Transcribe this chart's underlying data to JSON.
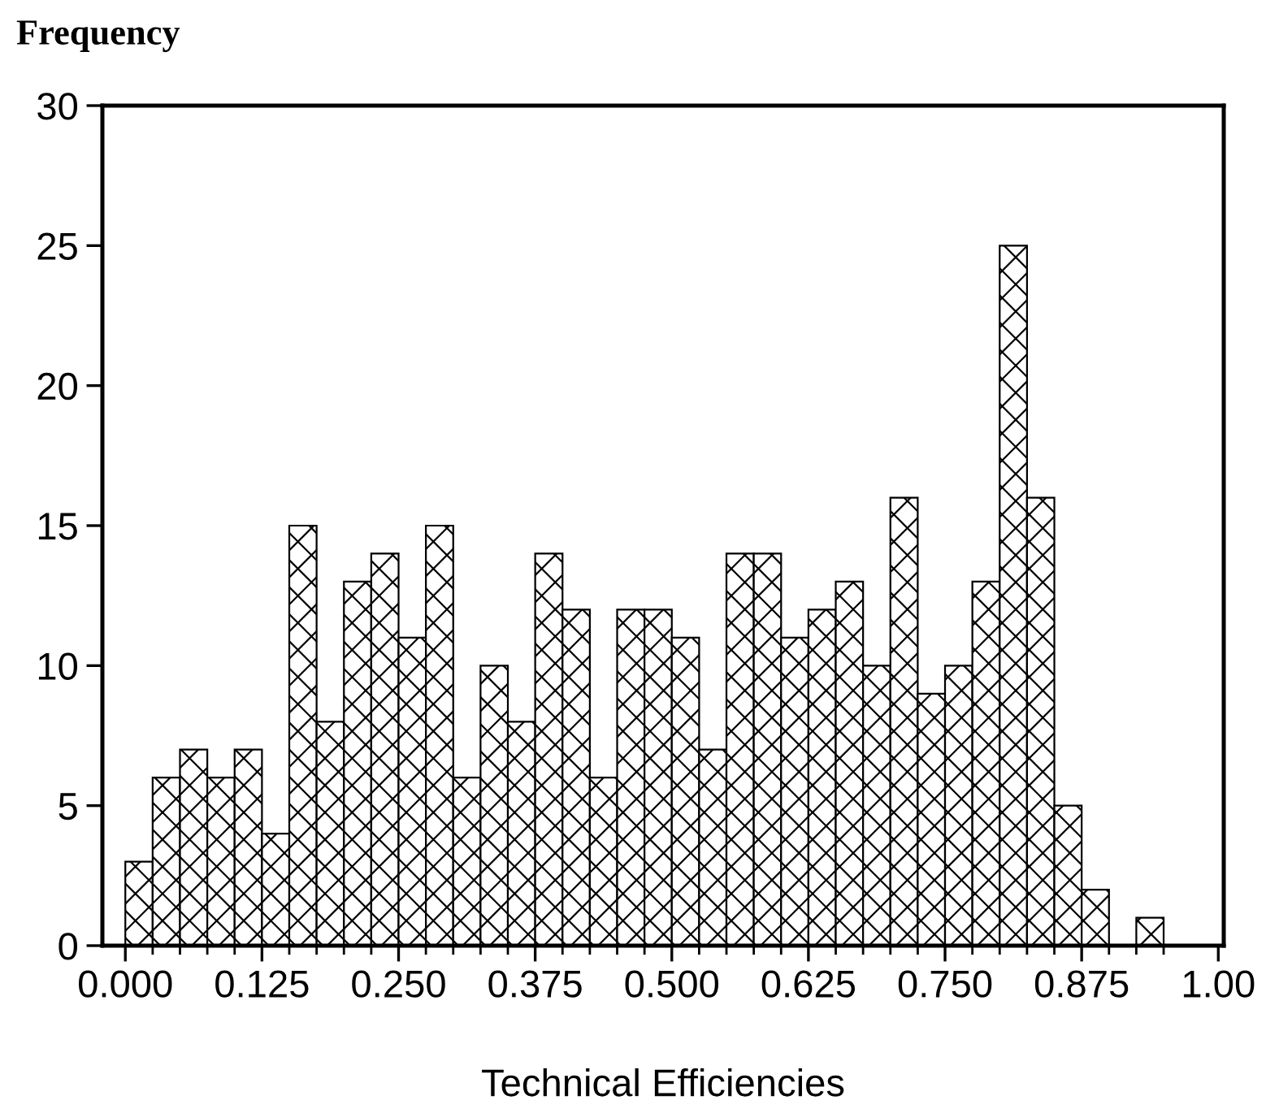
{
  "chart_data": {
    "type": "histogram",
    "ylabel": "Frequency",
    "xlabel": "Technical Efficiencies",
    "bins": [
      0,
      0.025,
      0.05,
      0.075,
      0.1,
      0.125,
      0.15,
      0.175,
      0.2,
      0.225,
      0.25,
      0.275,
      0.3,
      0.325,
      0.35,
      0.375,
      0.4,
      0.425,
      0.45,
      0.475,
      0.5,
      0.525,
      0.55,
      0.575,
      0.6,
      0.625,
      0.65,
      0.675,
      0.7,
      0.725,
      0.75,
      0.775,
      0.8,
      0.825,
      0.85,
      0.875,
      0.9,
      0.925,
      0.95
    ],
    "values": [
      3,
      6,
      7,
      6,
      7,
      4,
      15,
      8,
      13,
      14,
      11,
      15,
      6,
      10,
      8,
      14,
      12,
      6,
      12,
      12,
      11,
      7,
      14,
      14,
      11,
      12,
      13,
      10,
      16,
      9,
      10,
      13,
      25,
      16,
      5,
      2,
      0,
      1
    ],
    "color": "#000000",
    "xlim": [
      -0.021,
      1.005
    ],
    "xticks": [
      {
        "value": 0,
        "label": "0.000"
      },
      0.125,
      {
        "value": 0.25,
        "label": "0.250"
      },
      0.375,
      {
        "value": 0.5,
        "label": "0.500"
      },
      0.625,
      {
        "value": 0.75,
        "label": "0.750"
      },
      0.875,
      {
        "value": 1.0,
        "label": "1.00"
      }
    ],
    "ylim": [
      0,
      30
    ],
    "yticks": [
      0,
      5,
      10,
      15,
      20,
      25,
      30
    ],
    "grid": false,
    "legend": false
  }
}
